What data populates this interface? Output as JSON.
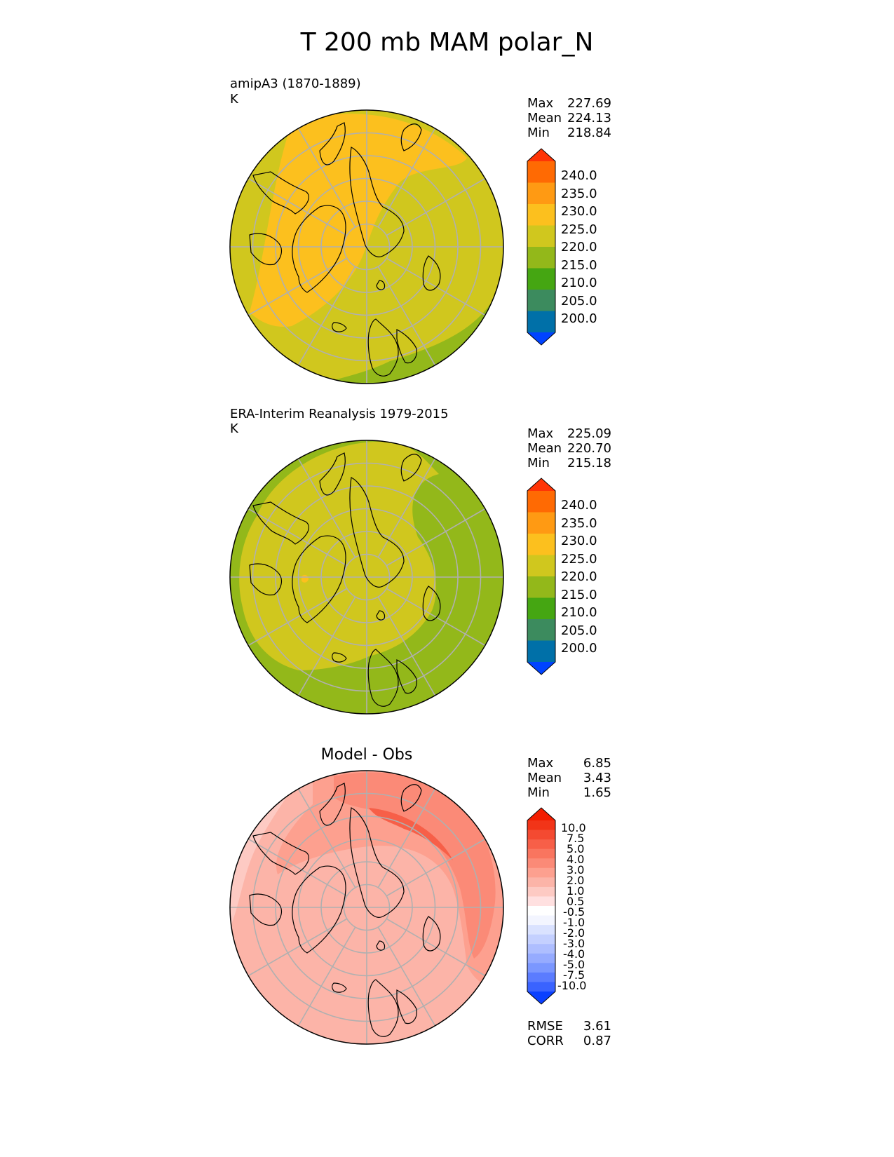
{
  "figure_title": "T 200 mb MAM polar_N",
  "colors": {
    "abs_levels": [
      "#0043ff",
      "#0070a8",
      "#3c8b5e",
      "#45a612",
      "#93b81a",
      "#d0c71e",
      "#fcc01e",
      "#ff9a13",
      "#ff6a03",
      "#ff3406"
    ],
    "diff_levels": [
      "#0a40ff",
      "#3a63ff",
      "#5b7cff",
      "#7b97ff",
      "#96abff",
      "#aebeff",
      "#c4d0ff",
      "#dae2ff",
      "#f3f5ff",
      "#ffffff",
      "#ffe0e0",
      "#fdcac3",
      "#fcb4a8",
      "#fda08f",
      "#fb8a77",
      "#f9755f",
      "#f75f48",
      "#f44a31",
      "#f23418",
      "#f31d00"
    ],
    "grid": "#b0b0b0",
    "coast": "#000000"
  },
  "panels": [
    {
      "id": "model",
      "title_line1": "amipA3 (1870-1889)",
      "title_line2": "K",
      "center_title": "",
      "stats": [
        {
          "label": "Max",
          "value": "227.69"
        },
        {
          "label": "Mean",
          "value": "224.13"
        },
        {
          "label": "Min",
          "value": "218.84"
        }
      ],
      "colorbar_ticks": [
        "240.0",
        "235.0",
        "230.0",
        "225.0",
        "220.0",
        "215.0",
        "210.0",
        "205.0",
        "200.0"
      ]
    },
    {
      "id": "obs",
      "title_line1": "ERA-Interim Reanalysis 1979-2015",
      "title_line2": "K",
      "center_title": "",
      "stats": [
        {
          "label": "Max",
          "value": "225.09"
        },
        {
          "label": "Mean",
          "value": "220.70"
        },
        {
          "label": "Min",
          "value": "215.18"
        }
      ],
      "colorbar_ticks": [
        "240.0",
        "235.0",
        "230.0",
        "225.0",
        "220.0",
        "215.0",
        "210.0",
        "205.0",
        "200.0"
      ]
    },
    {
      "id": "diff",
      "title_line1": "",
      "title_line2": "",
      "center_title": "Model - Obs",
      "stats": [
        {
          "label": "Max",
          "value": "6.85"
        },
        {
          "label": "Mean",
          "value": "3.43"
        },
        {
          "label": "Min",
          "value": "1.65"
        }
      ],
      "colorbar_ticks": [
        "10.0",
        "7.5",
        "5.0",
        "4.0",
        "3.0",
        "2.0",
        "1.0",
        "0.5",
        "-0.5",
        "-1.0",
        "-2.0",
        "-3.0",
        "-4.0",
        "-5.0",
        "-7.5",
        "-10.0"
      ],
      "extra_stats": [
        {
          "label": "RMSE",
          "value": "3.61"
        },
        {
          "label": "CORR",
          "value": "0.87"
        }
      ]
    }
  ],
  "chart_data": [
    {
      "type": "heatmap",
      "title": "amipA3 (1870-1889)",
      "units": "K",
      "projection": "north polar stereographic",
      "levels": [
        200,
        205,
        210,
        215,
        220,
        225,
        230,
        235,
        240
      ],
      "extend": "both",
      "stats": {
        "max": 227.69,
        "mean": 224.13,
        "min": 218.84
      },
      "regions": [
        {
          "name": "background",
          "range": [
            220,
            225
          ]
        },
        {
          "name": "warm-band",
          "range": [
            225,
            230
          ]
        },
        {
          "name": "southern-edge",
          "range": [
            215,
            220
          ]
        }
      ]
    },
    {
      "type": "heatmap",
      "title": "ERA-Interim Reanalysis 1979-2015",
      "units": "K",
      "projection": "north polar stereographic",
      "levels": [
        200,
        205,
        210,
        215,
        220,
        225,
        230,
        235,
        240
      ],
      "extend": "both",
      "stats": {
        "max": 225.09,
        "mean": 220.7,
        "min": 215.18
      },
      "regions": [
        {
          "name": "background",
          "range": [
            220,
            225
          ]
        },
        {
          "name": "cool-band",
          "range": [
            215,
            220
          ]
        },
        {
          "name": "small-warm-patch",
          "range": [
            225,
            230
          ]
        }
      ]
    },
    {
      "type": "heatmap",
      "title": "Model - Obs",
      "projection": "north polar stereographic",
      "levels": [
        -10,
        -7.5,
        -5,
        -4,
        -3,
        -2,
        -1,
        -0.5,
        0.5,
        1,
        2,
        3,
        4,
        5,
        7.5,
        10
      ],
      "extend": "both",
      "stats": {
        "max": 6.85,
        "mean": 3.43,
        "min": 1.65,
        "rmse": 3.61,
        "corr": 0.87
      },
      "regions": [
        {
          "name": "background",
          "range": [
            2,
            3
          ]
        },
        {
          "name": "band-3-4",
          "range": [
            3,
            4
          ]
        },
        {
          "name": "band-4-5",
          "range": [
            4,
            5
          ]
        },
        {
          "name": "band-1-2",
          "range": [
            1,
            2
          ]
        },
        {
          "name": "max-core",
          "range": [
            5,
            7.5
          ]
        }
      ]
    }
  ]
}
